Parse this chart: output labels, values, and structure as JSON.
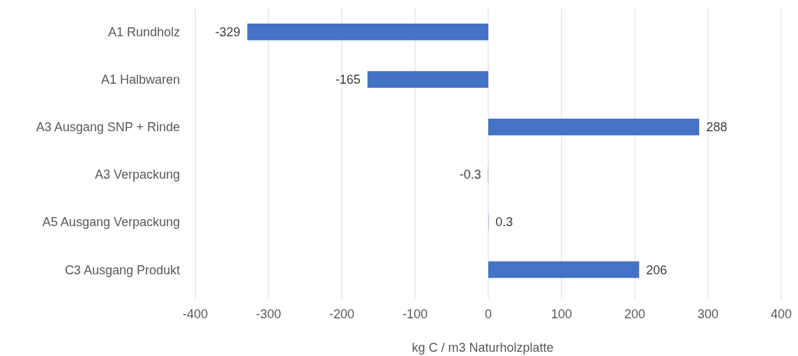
{
  "chart_data": {
    "type": "bar",
    "orientation": "horizontal",
    "categories": [
      "A1 Rundholz",
      "A1 Halbwaren",
      "A3 Ausgang SNP + Rinde",
      "A3 Verpackung",
      "A5 Ausgang Verpackung",
      "C3 Ausgang Produkt"
    ],
    "values": [
      -329,
      -165,
      288,
      -0.3,
      0.3,
      206
    ],
    "color": "#4472c4",
    "xlim": [
      -400,
      400
    ],
    "xticks": [
      -400,
      -300,
      -200,
      -100,
      0,
      100,
      200,
      300,
      400
    ],
    "xlabel": "kg C / m3 Naturholzplatte",
    "grid": "x",
    "data_labels": true
  }
}
